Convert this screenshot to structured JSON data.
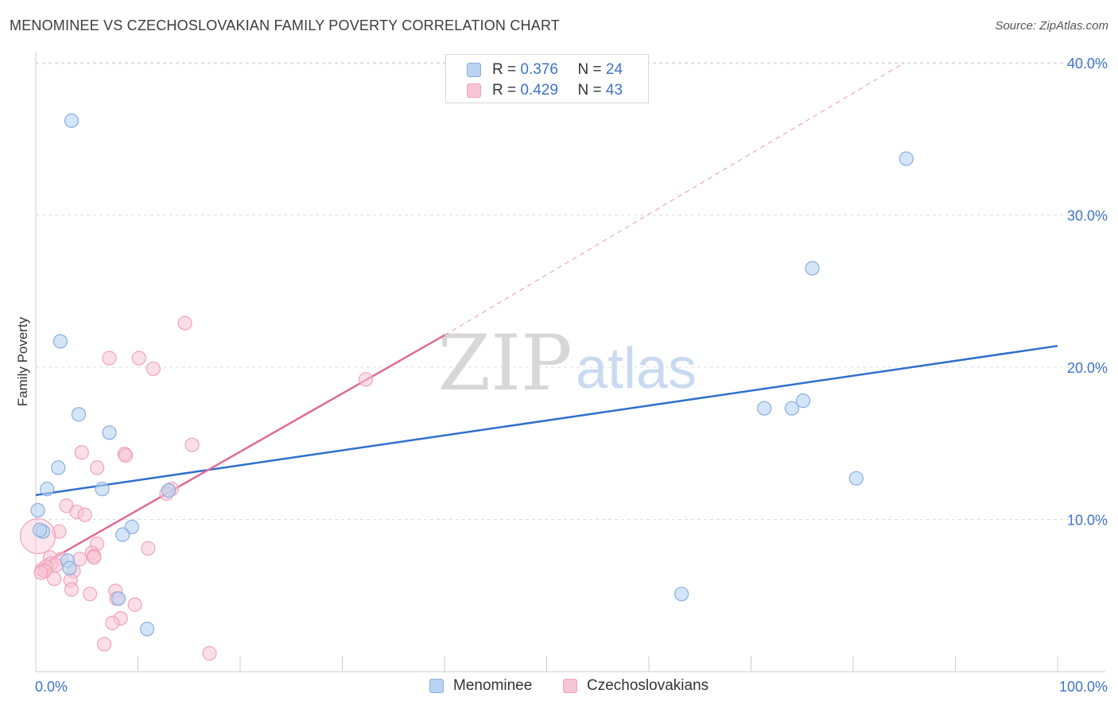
{
  "title": "MENOMINEE VS CZECHOSLOVAKIAN FAMILY POVERTY CORRELATION CHART",
  "source": "Source: ZipAtlas.com",
  "watermark": {
    "zip": "ZIP",
    "atlas": "atlas"
  },
  "colors": {
    "blue_fill": "#b9d3f3",
    "blue_stroke": "#86aee0",
    "blue_line": "#2f6fce",
    "pink_fill": "#f8c5d4",
    "pink_stroke": "#f0a3bb",
    "pink_line": "#e06a92",
    "axis_text": "#3d74c6",
    "grid": "#dddddd"
  },
  "legend_top": [
    {
      "r_label": "R =",
      "r_value": "0.376",
      "n_label": "N =",
      "n_value": "24"
    },
    {
      "r_label": "R =",
      "r_value": "0.429",
      "n_label": "N =",
      "n_value": "43"
    }
  ],
  "legend_bottom": [
    "Menominee",
    "Czechoslovakians"
  ],
  "chart_data": {
    "type": "scatter",
    "title": "MENOMINEE VS CZECHOSLOVAKIAN FAMILY POVERTY CORRELATION CHART",
    "xlabel": "",
    "ylabel": "Family Poverty",
    "xlim": [
      0,
      100
    ],
    "ylim": [
      0,
      40
    ],
    "x_tick_labels": [
      "0.0%",
      "100.0%"
    ],
    "y_ticks": [
      10,
      20,
      30,
      40
    ],
    "y_tick_labels": [
      "10.0%",
      "20.0%",
      "30.0%",
      "40.0%"
    ],
    "grid": true,
    "series": [
      {
        "name": "Menominee",
        "R": 0.376,
        "N": 24,
        "points": [
          [
            3.5,
            36.2
          ],
          [
            2.4,
            21.7
          ],
          [
            4.2,
            16.9
          ],
          [
            7.2,
            15.7
          ],
          [
            2.2,
            13.4
          ],
          [
            1.1,
            12.0
          ],
          [
            6.5,
            12.0
          ],
          [
            13.0,
            11.9
          ],
          [
            0.2,
            10.6
          ],
          [
            0.7,
            9.2
          ],
          [
            9.4,
            9.5
          ],
          [
            8.5,
            9.0
          ],
          [
            3.1,
            7.3
          ],
          [
            3.3,
            6.8
          ],
          [
            8.1,
            4.8
          ],
          [
            10.9,
            2.8
          ],
          [
            63.2,
            5.1
          ],
          [
            71.3,
            17.3
          ],
          [
            74.0,
            17.3
          ],
          [
            75.1,
            17.8
          ],
          [
            80.3,
            12.7
          ],
          [
            76.0,
            26.5
          ],
          [
            85.2,
            33.7
          ],
          [
            0.4,
            9.3
          ]
        ],
        "trend": {
          "x0": 0,
          "y0": 11.6,
          "x1": 100,
          "y1": 21.4,
          "style": "solid"
        }
      },
      {
        "name": "Czechoslovakians",
        "R": 0.429,
        "N": 43,
        "points": [
          [
            14.6,
            22.9
          ],
          [
            7.2,
            20.6
          ],
          [
            10.1,
            20.6
          ],
          [
            11.5,
            19.9
          ],
          [
            32.3,
            19.2
          ],
          [
            15.3,
            14.9
          ],
          [
            4.5,
            14.4
          ],
          [
            8.7,
            14.3
          ],
          [
            8.8,
            14.2
          ],
          [
            6.0,
            13.4
          ],
          [
            13.3,
            12.0
          ],
          [
            12.8,
            11.7
          ],
          [
            3.0,
            10.9
          ],
          [
            4.0,
            10.5
          ],
          [
            4.8,
            10.3
          ],
          [
            2.3,
            9.2
          ],
          [
            6.0,
            8.4
          ],
          [
            11.0,
            8.1
          ],
          [
            5.5,
            7.8
          ],
          [
            5.7,
            7.6
          ],
          [
            1.4,
            7.5
          ],
          [
            2.5,
            7.4
          ],
          [
            4.3,
            7.4
          ],
          [
            5.7,
            7.5
          ],
          [
            1.5,
            7.1
          ],
          [
            2.0,
            7.0
          ],
          [
            1.0,
            6.9
          ],
          [
            0.6,
            6.7
          ],
          [
            0.9,
            6.6
          ],
          [
            3.7,
            6.6
          ],
          [
            0.5,
            6.5
          ],
          [
            1.8,
            6.1
          ],
          [
            3.4,
            6.0
          ],
          [
            3.5,
            5.4
          ],
          [
            5.3,
            5.1
          ],
          [
            7.8,
            5.3
          ],
          [
            7.9,
            4.8
          ],
          [
            9.7,
            4.4
          ],
          [
            8.3,
            3.5
          ],
          [
            7.5,
            3.2
          ],
          [
            6.7,
            1.8
          ],
          [
            17.0,
            1.2
          ],
          [
            0.2,
            8.9
          ]
        ],
        "trend": {
          "x0": 0,
          "y0": 6.8,
          "x1": 40,
          "y1": 22.1,
          "style": "solid"
        },
        "trend_extension": {
          "x0": 40,
          "y0": 22.1,
          "x1": 85,
          "y1": 40,
          "style": "dashed"
        }
      }
    ]
  }
}
